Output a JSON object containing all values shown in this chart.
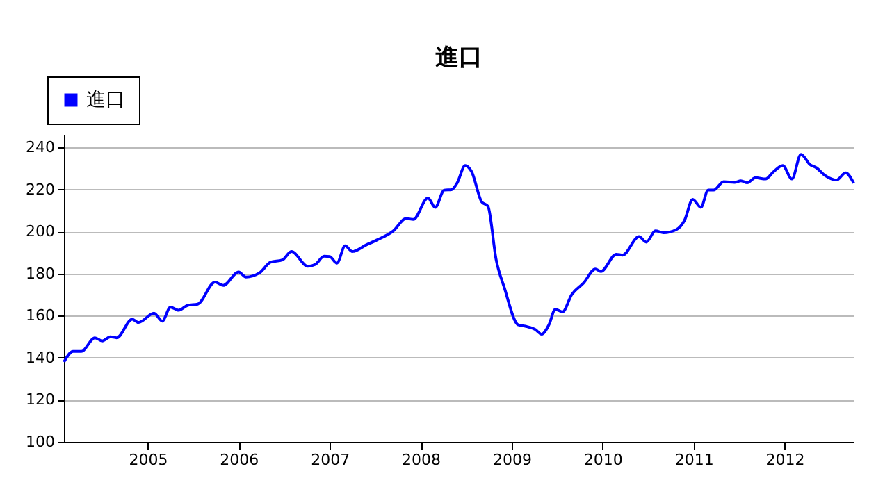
{
  "chart_data": {
    "type": "line",
    "title": "進口",
    "x": [
      2004.08,
      2004.18,
      2004.27,
      2004.42,
      2004.5,
      2004.59,
      2004.66,
      2004.83,
      2004.9,
      2005.07,
      2005.16,
      2005.25,
      2005.34,
      2005.44,
      2005.55,
      2005.74,
      2005.83,
      2006.0,
      2006.08,
      2006.23,
      2006.35,
      2006.48,
      2006.58,
      2006.76,
      2006.84,
      2006.94,
      2007.0,
      2007.08,
      2007.17,
      2007.25,
      2007.4,
      2007.52,
      2007.7,
      2007.84,
      2007.92,
      2008.08,
      2008.16,
      2008.26,
      2008.34,
      2008.4,
      2008.49,
      2008.56,
      2008.67,
      2008.74,
      2008.83,
      2008.92,
      2009.07,
      2009.15,
      2009.26,
      2009.33,
      2009.41,
      2009.48,
      2009.56,
      2009.66,
      2009.79,
      2009.92,
      2009.98,
      2010.15,
      2010.22,
      2010.4,
      2010.48,
      2010.58,
      2010.67,
      2010.81,
      2010.9,
      2010.99,
      2011.08,
      2011.16,
      2011.22,
      2011.33,
      2011.45,
      2011.52,
      2011.59,
      2011.68,
      2011.79,
      2011.88,
      2011.98,
      2012.08,
      2012.18,
      2012.28,
      2012.35,
      2012.44,
      2012.57,
      2012.67,
      2012.76
    ],
    "series": [
      {
        "name": "進口",
        "color": "#0000ff",
        "values": [
          138,
          143,
          143,
          149.5,
          148,
          150,
          149.5,
          158.3,
          156.8,
          161.2,
          157.4,
          164,
          162.6,
          164.9,
          165.5,
          176,
          174.4,
          180.8,
          178.4,
          180.4,
          185.4,
          186.5,
          190.5,
          183.5,
          184.3,
          188.3,
          188.1,
          185,
          193.2,
          190.5,
          193.6,
          196,
          200.3,
          206.2,
          205.8,
          215.9,
          211.5,
          219.7,
          219.9,
          223,
          231.4,
          228.5,
          214.2,
          212,
          186.6,
          173.3,
          155.7,
          155,
          153.4,
          151.2,
          155.7,
          163,
          161.8,
          170,
          175.5,
          182.2,
          181,
          189.2,
          188.8,
          197.6,
          195,
          200.3,
          199.4,
          200.9,
          205.3,
          215.3,
          211.5,
          219.7,
          219.7,
          223.7,
          223.4,
          224.1,
          223.2,
          225.6,
          225,
          228.5,
          231.4,
          225,
          236.7,
          231.8,
          230.3,
          226.8,
          224.5,
          227.9,
          223
        ]
      }
    ],
    "xlim": [
      2004.08,
      2012.76
    ],
    "xticks": [
      2005,
      2006,
      2007,
      2008,
      2009,
      2010,
      2011,
      2012
    ],
    "ylim": [
      100,
      246
    ],
    "yticks": [
      100,
      120,
      140,
      160,
      180,
      200,
      220,
      240
    ],
    "grid": "y",
    "legend": "top left",
    "marker": "none",
    "line_style": "solid"
  }
}
